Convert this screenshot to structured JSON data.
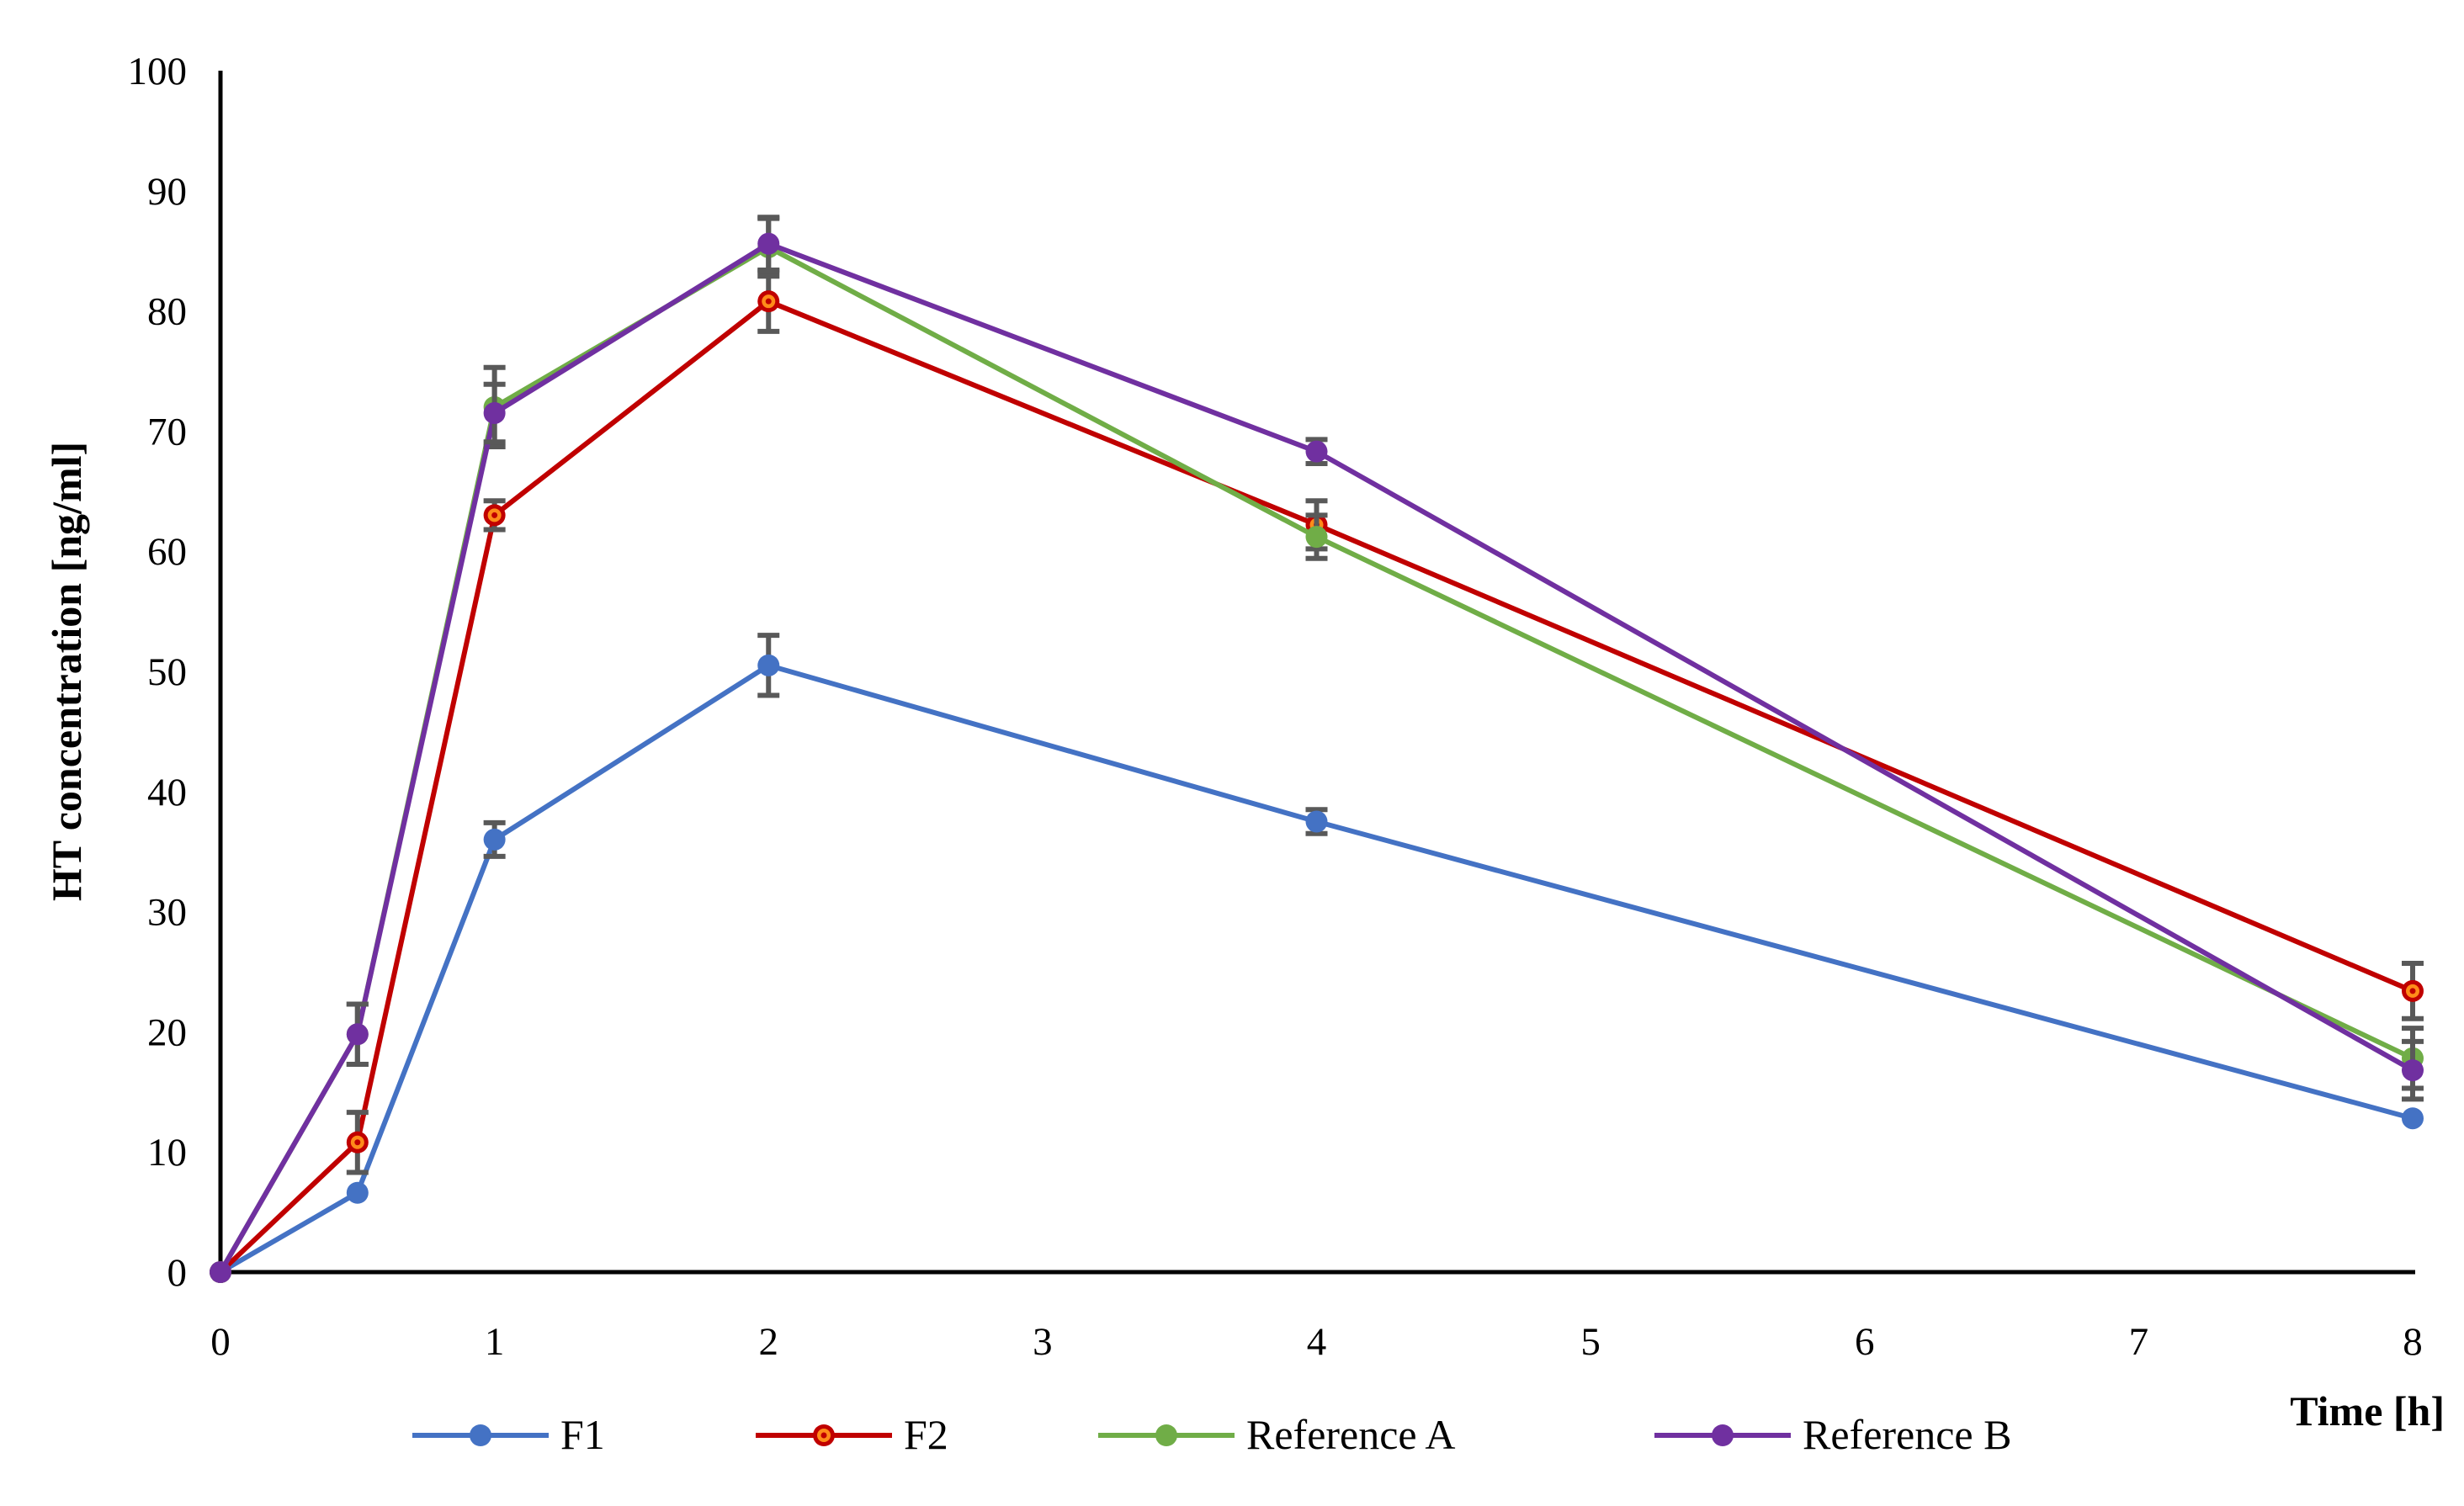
{
  "chart_data": {
    "type": "line",
    "title": "",
    "xlabel": "Time [h]",
    "ylabel": "HT concentration [ng/ml]",
    "ylim": [
      0,
      100
    ],
    "yticks": [
      0,
      10,
      20,
      30,
      40,
      50,
      60,
      70,
      80,
      90,
      100
    ],
    "xticks": [
      "0",
      "1",
      "2",
      "3",
      "4",
      "5",
      "6",
      "7",
      "8"
    ],
    "x": [
      0,
      0.5,
      1,
      2,
      4,
      8
    ],
    "grid": false,
    "legend_position": "bottom",
    "series": [
      {
        "name": "F1",
        "color": "#4472C4",
        "marker_center": "#4472C4",
        "values": [
          0,
          6.6,
          36.0,
          50.5,
          37.5,
          12.8
        ],
        "errors": [
          0,
          0,
          1.4,
          2.5,
          1.0,
          0
        ]
      },
      {
        "name": "F2",
        "color": "#C00000",
        "marker_center": "#FF8C1A",
        "values": [
          0,
          10.8,
          63.0,
          80.8,
          62.2,
          23.4
        ],
        "errors": [
          0,
          2.5,
          1.2,
          2.5,
          2.0,
          2.3
        ]
      },
      {
        "name": "Reference A",
        "color": "#70AD47",
        "marker_center": "#70AD47",
        "values": [
          0,
          19.8,
          72.0,
          85.3,
          61.2,
          17.8
        ],
        "errors": [
          0,
          2.5,
          3.3,
          2.4,
          1.8,
          2.5
        ]
      },
      {
        "name": "Reference B",
        "color": "#7030A0",
        "marker_center": "#7030A0",
        "values": [
          0,
          19.8,
          71.5,
          85.6,
          68.3,
          16.8
        ],
        "errors": [
          0,
          2.5,
          2.4,
          2.2,
          1.0,
          2.4
        ]
      }
    ]
  }
}
